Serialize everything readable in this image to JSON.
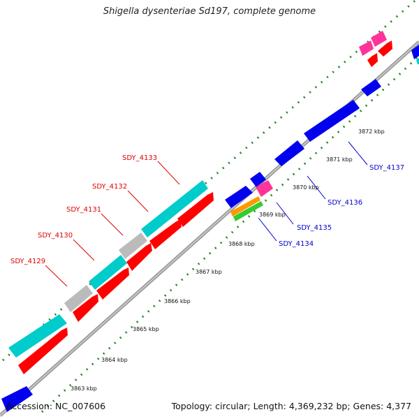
{
  "title": "Shigella dysenteriae Sd197, complete genome",
  "footer": {
    "accession": "Accession: NC_007606",
    "summary": "Topology: circular; Length: 4,369,232 bp; Genes: 4,377"
  },
  "colors": {
    "background": "#ffffff",
    "backbone": "#9a9a9a",
    "forward_strand_gene": "#00cccc",
    "reverse_strand_gene": "#ff0000",
    "blue_gene": "#0000ee",
    "grey_gene": "#bbbbbb",
    "magenta_gene": "#ff3399",
    "orange_gene": "#ff9900",
    "green_gene": "#33cc33",
    "tick_marks": "#228822",
    "label_red": "#dd0000",
    "label_blue": "#0000cc"
  },
  "scale_ticks": [
    "3863 kbp",
    "3864 kbp",
    "3865 kbp",
    "3866 kbp",
    "3867 kbp",
    "3868 kbp",
    "3869 kbp",
    "3870 kbp",
    "3871 kbp",
    "3872 kbp"
  ],
  "gene_labels": [
    "SDY_4129",
    "SDY_4130",
    "SDY_4131",
    "SDY_4132",
    "SDY_4133",
    "SDY_4134",
    "SDY_4135",
    "SDY_4136",
    "SDY_4137"
  ]
}
